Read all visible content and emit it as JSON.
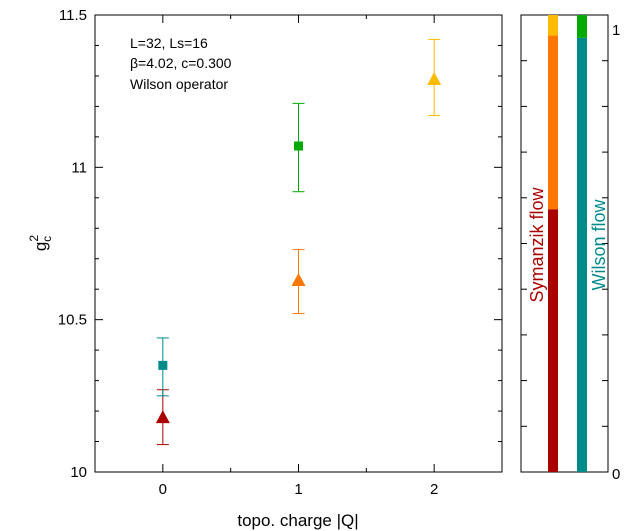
{
  "chart_data": {
    "type": "scatter",
    "xlabel": "topo. charge |Q|",
    "ylabel_base": "g",
    "ylabel_sup": "2",
    "ylabel_sub": "c",
    "xlim": [
      -0.5,
      2.5
    ],
    "ylim": [
      10,
      11.5
    ],
    "xticks": [
      "0",
      "1",
      "2"
    ],
    "yticks": [
      "10",
      "10.5",
      "11",
      "11.5"
    ],
    "annotations": [
      "L=32, Ls=16",
      "β=4.02, c=0.300",
      "Wilson operator"
    ],
    "series": [
      {
        "color": "#aa0000",
        "marker": "triangle",
        "points": [
          {
            "x": 0,
            "y": 10.18,
            "err_low": 10.09,
            "err_high": 10.27
          }
        ]
      },
      {
        "color": "#ff7700",
        "marker": "triangle",
        "points": [
          {
            "x": 1,
            "y": 10.63,
            "err_low": 10.52,
            "err_high": 10.73
          }
        ]
      },
      {
        "color": "#ffbb00",
        "marker": "triangle",
        "points": [
          {
            "x": 2,
            "y": 11.29,
            "err_low": 11.17,
            "err_high": 11.42
          }
        ]
      },
      {
        "color": "#008b8b",
        "marker": "square",
        "points": [
          {
            "x": 0,
            "y": 10.35,
            "err_low": 10.25,
            "err_high": 10.44
          }
        ]
      },
      {
        "color": "#00aa00",
        "marker": "square",
        "points": [
          {
            "x": 1,
            "y": 11.07,
            "err_low": 10.92,
            "err_high": 11.21
          }
        ]
      }
    ]
  },
  "side_panel": {
    "ylim": [
      0,
      1
    ],
    "tick_top": "1",
    "tick_bottom": "0",
    "bars": [
      {
        "label": "Symanzik flow",
        "label_color": "#aa0000",
        "segments": [
          {
            "color": "#aa0000",
            "from": 0.0,
            "to": 0.575
          },
          {
            "color": "#ff7700",
            "from": 0.575,
            "to": 0.955
          },
          {
            "color": "#ffbb00",
            "from": 0.955,
            "to": 1.0
          }
        ]
      },
      {
        "label": "Wilson flow",
        "label_color": "#008b8b",
        "segments": [
          {
            "color": "#008b8b",
            "from": 0.0,
            "to": 0.95
          },
          {
            "color": "#00aa00",
            "from": 0.95,
            "to": 1.0
          }
        ]
      }
    ]
  }
}
